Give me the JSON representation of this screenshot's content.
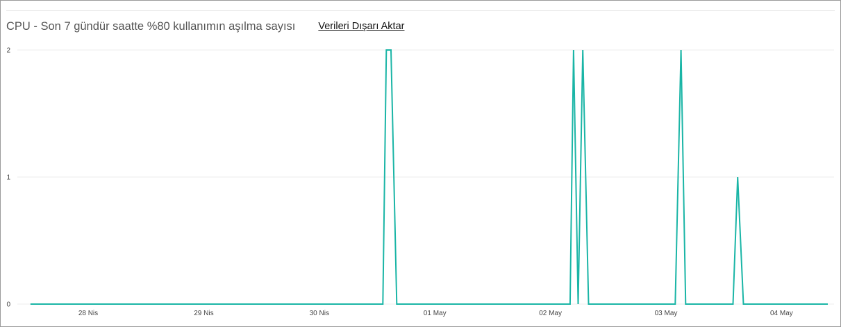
{
  "header": {
    "title": "CPU - Son 7 gündür saatte %80 kullanımın aşılma sayısı",
    "export_label": "Verileri Dışarı Aktar"
  },
  "colors": {
    "series": "#1ab5a6",
    "grid": "#ececec",
    "axis_text": "#444444",
    "title": "#555555"
  },
  "chart_data": {
    "type": "line",
    "title": "CPU - Son 7 gündür saatte %80 kullanımın aşılma sayısı",
    "xlabel": "",
    "ylabel": "",
    "ylim": [
      0,
      2
    ],
    "y_ticks": [
      "0",
      "1",
      "2"
    ],
    "x_ticks": [
      "28 Nis",
      "29 Nis",
      "30 Nis",
      "01 May",
      "02 May",
      "03 May",
      "04 May"
    ],
    "grid": true,
    "series": [
      {
        "points": [
          [
            -0.5,
            0
          ],
          [
            2.55,
            0
          ],
          [
            2.58,
            2
          ],
          [
            2.62,
            2
          ],
          [
            2.67,
            0
          ],
          [
            4.17,
            0
          ],
          [
            4.2,
            2
          ],
          [
            4.24,
            0
          ],
          [
            4.28,
            2
          ],
          [
            4.33,
            0
          ],
          [
            5.08,
            0
          ],
          [
            5.13,
            2
          ],
          [
            5.17,
            0
          ],
          [
            5.58,
            0
          ],
          [
            5.62,
            1
          ],
          [
            5.67,
            0
          ],
          [
            6.4,
            0
          ]
        ]
      }
    ]
  }
}
